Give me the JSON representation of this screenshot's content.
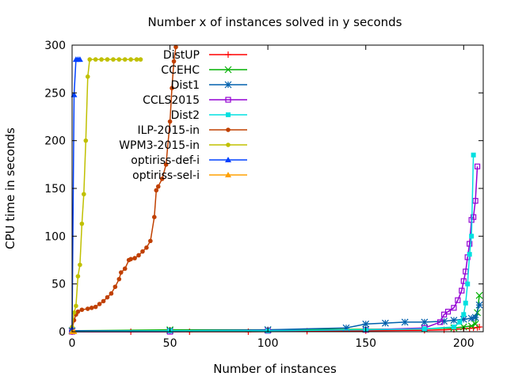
{
  "chart_data": {
    "type": "line",
    "title": "Number x of instances solved in y seconds",
    "xlabel": "Number of instances",
    "ylabel": "CPU time in seconds",
    "xlim": [
      0,
      210
    ],
    "ylim": [
      0,
      300
    ],
    "xticks": [
      0,
      50,
      100,
      150,
      200
    ],
    "yticks": [
      0,
      50,
      100,
      150,
      200,
      250,
      300
    ],
    "grid": false,
    "legend_position": "top-left",
    "series": [
      {
        "name": "DistUP",
        "color": "#ff0000",
        "marker": "plus",
        "x": [
          0,
          30,
          60,
          90,
          120,
          150,
          180,
          190,
          195,
          200,
          203,
          205,
          207,
          208
        ],
        "y": [
          0,
          0,
          0,
          0,
          0.5,
          1,
          1.5,
          2,
          2.5,
          3,
          3.5,
          4,
          4.5,
          5
        ]
      },
      {
        "name": "CCEHC",
        "color": "#00b000",
        "marker": "x",
        "x": [
          0,
          50,
          100,
          150,
          180,
          195,
          200,
          204,
          206,
          207,
          208
        ],
        "y": [
          1,
          2,
          2,
          2.5,
          3,
          4,
          5,
          6,
          8,
          20,
          38
        ]
      },
      {
        "name": "Dist1",
        "color": "#0060ad",
        "marker": "star",
        "x": [
          0,
          50,
          100,
          140,
          150,
          160,
          170,
          180,
          190,
          195,
          200,
          204,
          206,
          208
        ],
        "y": [
          1,
          1,
          2,
          4,
          8,
          9,
          10,
          10,
          11,
          12,
          13,
          14,
          15,
          28
        ]
      },
      {
        "name": "CCLS2015",
        "color": "#9400d3",
        "marker": "square-open",
        "x": [
          0,
          50,
          100,
          150,
          180,
          188,
          190,
          192,
          195,
          197,
          199,
          200,
          201,
          202,
          203,
          204,
          205,
          206,
          207
        ],
        "y": [
          0,
          0,
          1,
          2,
          4,
          10,
          18,
          21,
          25,
          33,
          43,
          53,
          63,
          78,
          92,
          117,
          120,
          137,
          173
        ]
      },
      {
        "name": "Dist2",
        "color": "#00e0e0",
        "marker": "square-filled",
        "x": [
          0,
          50,
          100,
          150,
          180,
          195,
          198,
          200,
          201,
          202,
          203,
          204,
          205
        ],
        "y": [
          0,
          1,
          1,
          2,
          3,
          5,
          10,
          18,
          30,
          50,
          81,
          100,
          185
        ]
      },
      {
        "name": "ILP-2015-in",
        "color": "#c04000",
        "marker": "circle-filled",
        "x": [
          0,
          1,
          2,
          3,
          5,
          8,
          10,
          12,
          14,
          16,
          18,
          20,
          22,
          24,
          25,
          27,
          29,
          30,
          32,
          34,
          36,
          38,
          40,
          42,
          43,
          44,
          46,
          48,
          50,
          51,
          52,
          53
        ],
        "y": [
          3,
          12,
          18,
          21,
          23,
          24,
          25,
          26,
          29,
          32,
          36,
          40,
          47,
          55,
          62,
          66,
          75,
          76,
          77,
          80,
          84,
          88,
          95,
          120,
          148,
          152,
          160,
          175,
          220,
          255,
          283,
          298
        ]
      },
      {
        "name": "WPM3-2015-in",
        "color": "#c0c000",
        "marker": "circle-filled",
        "x": [
          0,
          1,
          2,
          3,
          4,
          5,
          6,
          7,
          8,
          9,
          12,
          15,
          18,
          21,
          24,
          27,
          30,
          33,
          35
        ],
        "y": [
          5,
          20,
          27,
          58,
          70,
          113,
          144,
          200,
          267,
          285,
          285,
          285,
          285,
          285,
          285,
          285,
          285,
          285,
          285
        ]
      },
      {
        "name": "optiriss-def-i",
        "color": "#0040ff",
        "marker": "triangle",
        "x": [
          0,
          1,
          2,
          3,
          4
        ],
        "y": [
          3,
          248,
          285,
          285,
          285
        ]
      },
      {
        "name": "optiriss-sel-i",
        "color": "#ffa000",
        "marker": "triangle",
        "x": [
          0,
          1
        ],
        "y": [
          0,
          0
        ]
      }
    ]
  }
}
